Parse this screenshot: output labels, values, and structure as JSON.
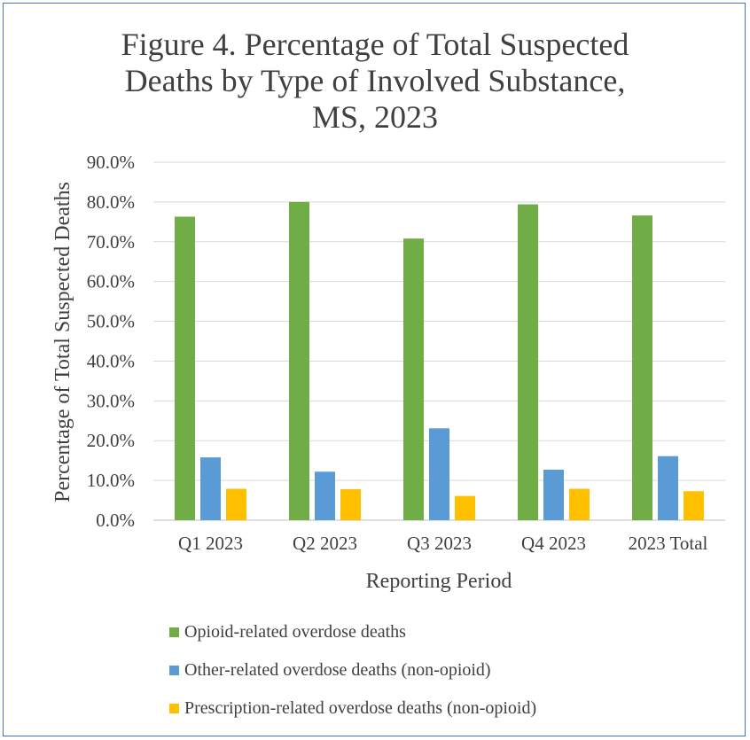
{
  "title_lines": [
    "Figure 4. Percentage of Total Suspected",
    "Deaths by Type of Involved Substance,",
    "MS, 2023"
  ],
  "chart_data": {
    "type": "bar",
    "title": "Figure 4. Percentage of Total Suspected Deaths by Type of Involved Substance, MS, 2023",
    "xlabel": "Reporting Period",
    "ylabel": "Percentage of Total Suspected Deaths",
    "categories": [
      "Q1 2023",
      "Q2 2023",
      "Q3 2023",
      "Q4 2023",
      "2023 Total"
    ],
    "ylim": [
      0,
      90
    ],
    "yticks": [
      "0.0%",
      "10.0%",
      "20.0%",
      "30.0%",
      "40.0%",
      "50.0%",
      "60.0%",
      "70.0%",
      "80.0%",
      "90.0%"
    ],
    "grid": true,
    "legend_position": "bottom",
    "series": [
      {
        "name": "Opioid-related overdose deaths",
        "color": "#70ad47",
        "values": [
          76.3,
          80.0,
          70.8,
          79.4,
          76.6
        ]
      },
      {
        "name": "Other-related overdose deaths (non-opioid)",
        "color": "#5b9bd5",
        "values": [
          15.8,
          12.2,
          23.1,
          12.7,
          16.1
        ]
      },
      {
        "name": "Prescription-related overdose deaths (non-opioid)",
        "color": "#ffc000",
        "values": [
          7.9,
          7.8,
          6.1,
          7.9,
          7.3
        ]
      }
    ]
  }
}
